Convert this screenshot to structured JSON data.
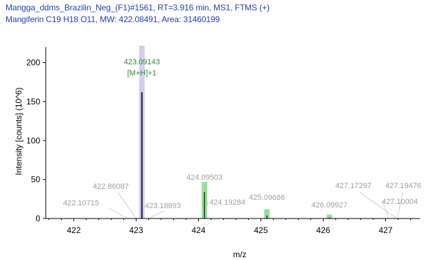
{
  "header": {
    "line1": "Mangga_ddms_Brazilin_Neg_(F1)#1561, RT=3.916 min, MS1, FTMS (+)",
    "line2": "Mangiferin C19 H18 O11, MW: 422.08491, Area: 31460199"
  },
  "colors": {
    "header_text": "#1f3fbf",
    "main_peak": "#1a1a3a",
    "main_highlight": "#c8c8e8",
    "isotope_green": "#7fd67f",
    "label_green": "#2e8b2e",
    "label_gray": "#a0a0a0",
    "axis": "#000000"
  },
  "chart_data": {
    "type": "bar",
    "title": "",
    "xlabel": "m/z",
    "ylabel": "Intensity [counts] (10^6)",
    "xlim": [
      421.55,
      427.55
    ],
    "ylim": [
      0,
      220
    ],
    "x_ticks": [
      422,
      423,
      424,
      425,
      426,
      427
    ],
    "y_ticks": [
      0,
      50,
      100,
      150,
      200
    ],
    "grid": false,
    "peaks": [
      {
        "mz": 423.09143,
        "intensity": 162,
        "label": "423.09143",
        "sublabel": "[M+H]+1",
        "style": "main"
      },
      {
        "mz": 424.09503,
        "intensity": 34,
        "label": "424.09503",
        "style": "isotope"
      },
      {
        "mz": 425.09686,
        "intensity": 4,
        "label": "425.09686",
        "style": "isotope"
      },
      {
        "mz": 426.09927,
        "intensity": 1.5,
        "label": "426.09927",
        "style": "isotope"
      },
      {
        "mz": 422.10715,
        "intensity": 0,
        "label": "422.10715",
        "style": "minor"
      },
      {
        "mz": 422.86087,
        "intensity": 0,
        "label": "422.86087",
        "style": "minor"
      },
      {
        "mz": 423.18893,
        "intensity": 0,
        "label": "423.18893",
        "style": "minor"
      },
      {
        "mz": 424.19284,
        "intensity": 0,
        "label": "424.19284",
        "style": "minor"
      },
      {
        "mz": 427.17297,
        "intensity": 0,
        "label": "427.17297",
        "style": "minor"
      },
      {
        "mz": 427.19476,
        "intensity": 0,
        "label": "427.19476",
        "style": "minor"
      },
      {
        "mz": 427.10004,
        "intensity": 0,
        "label": "427.10004",
        "style": "minor"
      }
    ],
    "isotope_pattern": [
      {
        "mz": 424.09503,
        "intensity": 47
      },
      {
        "mz": 425.09686,
        "intensity": 12
      },
      {
        "mz": 426.09927,
        "intensity": 5
      }
    ]
  }
}
